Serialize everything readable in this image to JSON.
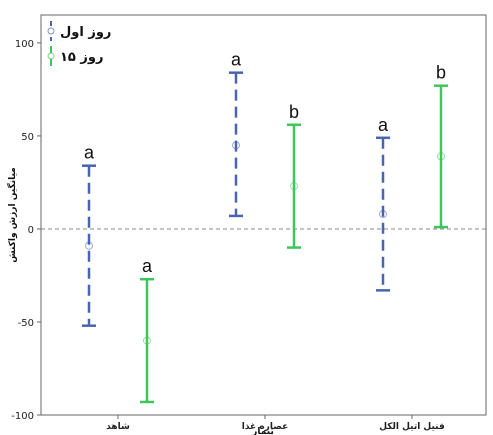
{
  "chart_data": {
    "type": "errorbar",
    "categories": [
      "شاهد",
      "عصاره غذا",
      "فنیل اتیل الکل"
    ],
    "xlabel": "تیمار",
    "ylabel": "میانگین ارزش واکنش",
    "ylim": [
      -100,
      115
    ],
    "yticks": [
      -100,
      -50,
      0,
      50,
      100
    ],
    "reference_line": 0,
    "reference_line_style": "dashed gray",
    "grid": false,
    "legend_position": "top-left",
    "series": [
      {
        "name": "روز اول",
        "color": "#4a64b0",
        "line_style": "dashed",
        "mean": [
          -9,
          45,
          8
        ],
        "upper": [
          34,
          84,
          49
        ],
        "lower": [
          -52,
          7,
          -33
        ],
        "labels": [
          "a",
          "a",
          "a"
        ]
      },
      {
        "name": "روز ۱۵",
        "color": "#3fc55c",
        "line_style": "solid",
        "mean": [
          -60,
          23,
          39
        ],
        "upper": [
          -27,
          56,
          77
        ],
        "lower": [
          -93,
          -10,
          1
        ],
        "labels": [
          "a",
          "b",
          "b"
        ]
      }
    ]
  }
}
